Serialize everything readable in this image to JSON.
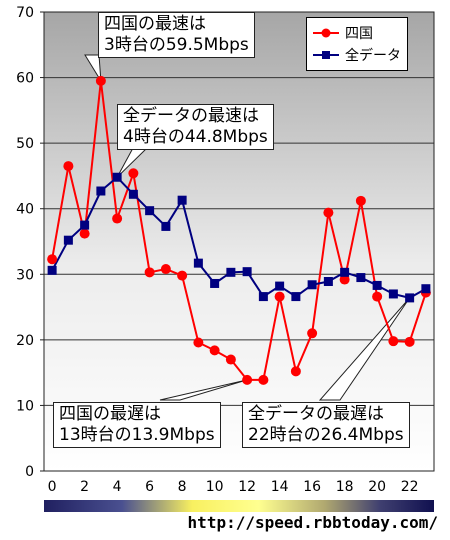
{
  "chart_data": {
    "type": "line",
    "x": [
      0,
      1,
      2,
      3,
      4,
      5,
      6,
      7,
      8,
      9,
      10,
      11,
      12,
      13,
      14,
      15,
      16,
      17,
      18,
      19,
      20,
      21,
      22,
      23
    ],
    "x_tick_labels": [
      "0",
      "2",
      "4",
      "6",
      "8",
      "10",
      "12",
      "14",
      "16",
      "18",
      "20",
      "22"
    ],
    "ylim": [
      0,
      70
    ],
    "y_tick_labels": [
      "0",
      "10",
      "20",
      "30",
      "40",
      "50",
      "60",
      "70"
    ],
    "grid": true,
    "legend_position": "top-right",
    "series": [
      {
        "name": "四国",
        "color": "#ff0000",
        "marker": "circle",
        "values": [
          32.3,
          46.5,
          36.2,
          59.5,
          38.5,
          45.4,
          30.3,
          30.8,
          29.8,
          19.6,
          18.4,
          17.0,
          13.9,
          13.9,
          26.6,
          15.2,
          21.0,
          39.4,
          29.2,
          41.2,
          26.6,
          19.8,
          19.7,
          27.2
        ]
      },
      {
        "name": "全データ",
        "color": "#000080",
        "marker": "square",
        "values": [
          30.6,
          35.2,
          37.5,
          42.7,
          44.8,
          42.2,
          39.7,
          37.3,
          41.3,
          31.7,
          28.6,
          30.3,
          30.4,
          26.6,
          28.2,
          26.6,
          28.4,
          28.9,
          30.3,
          29.5,
          28.3,
          27.0,
          26.4,
          27.8
        ]
      }
    ],
    "annotations": [
      {
        "line1": "四国の最速は",
        "line2": "3時台の59.5Mbps",
        "x": 3,
        "y": 59.5
      },
      {
        "line1": "全データの最速は",
        "line2": "4時台の44.8Mbps",
        "x": 4,
        "y": 44.8
      },
      {
        "line1": "四国の最遅は",
        "line2": "13時台の13.9Mbps",
        "x": 12,
        "y": 13.9
      },
      {
        "line1": "全データの最遅は",
        "line2": "22時台の26.4Mbps",
        "x": 22,
        "y": 26.4
      }
    ]
  },
  "source_url": "http://speed.rbbtoday.com/"
}
